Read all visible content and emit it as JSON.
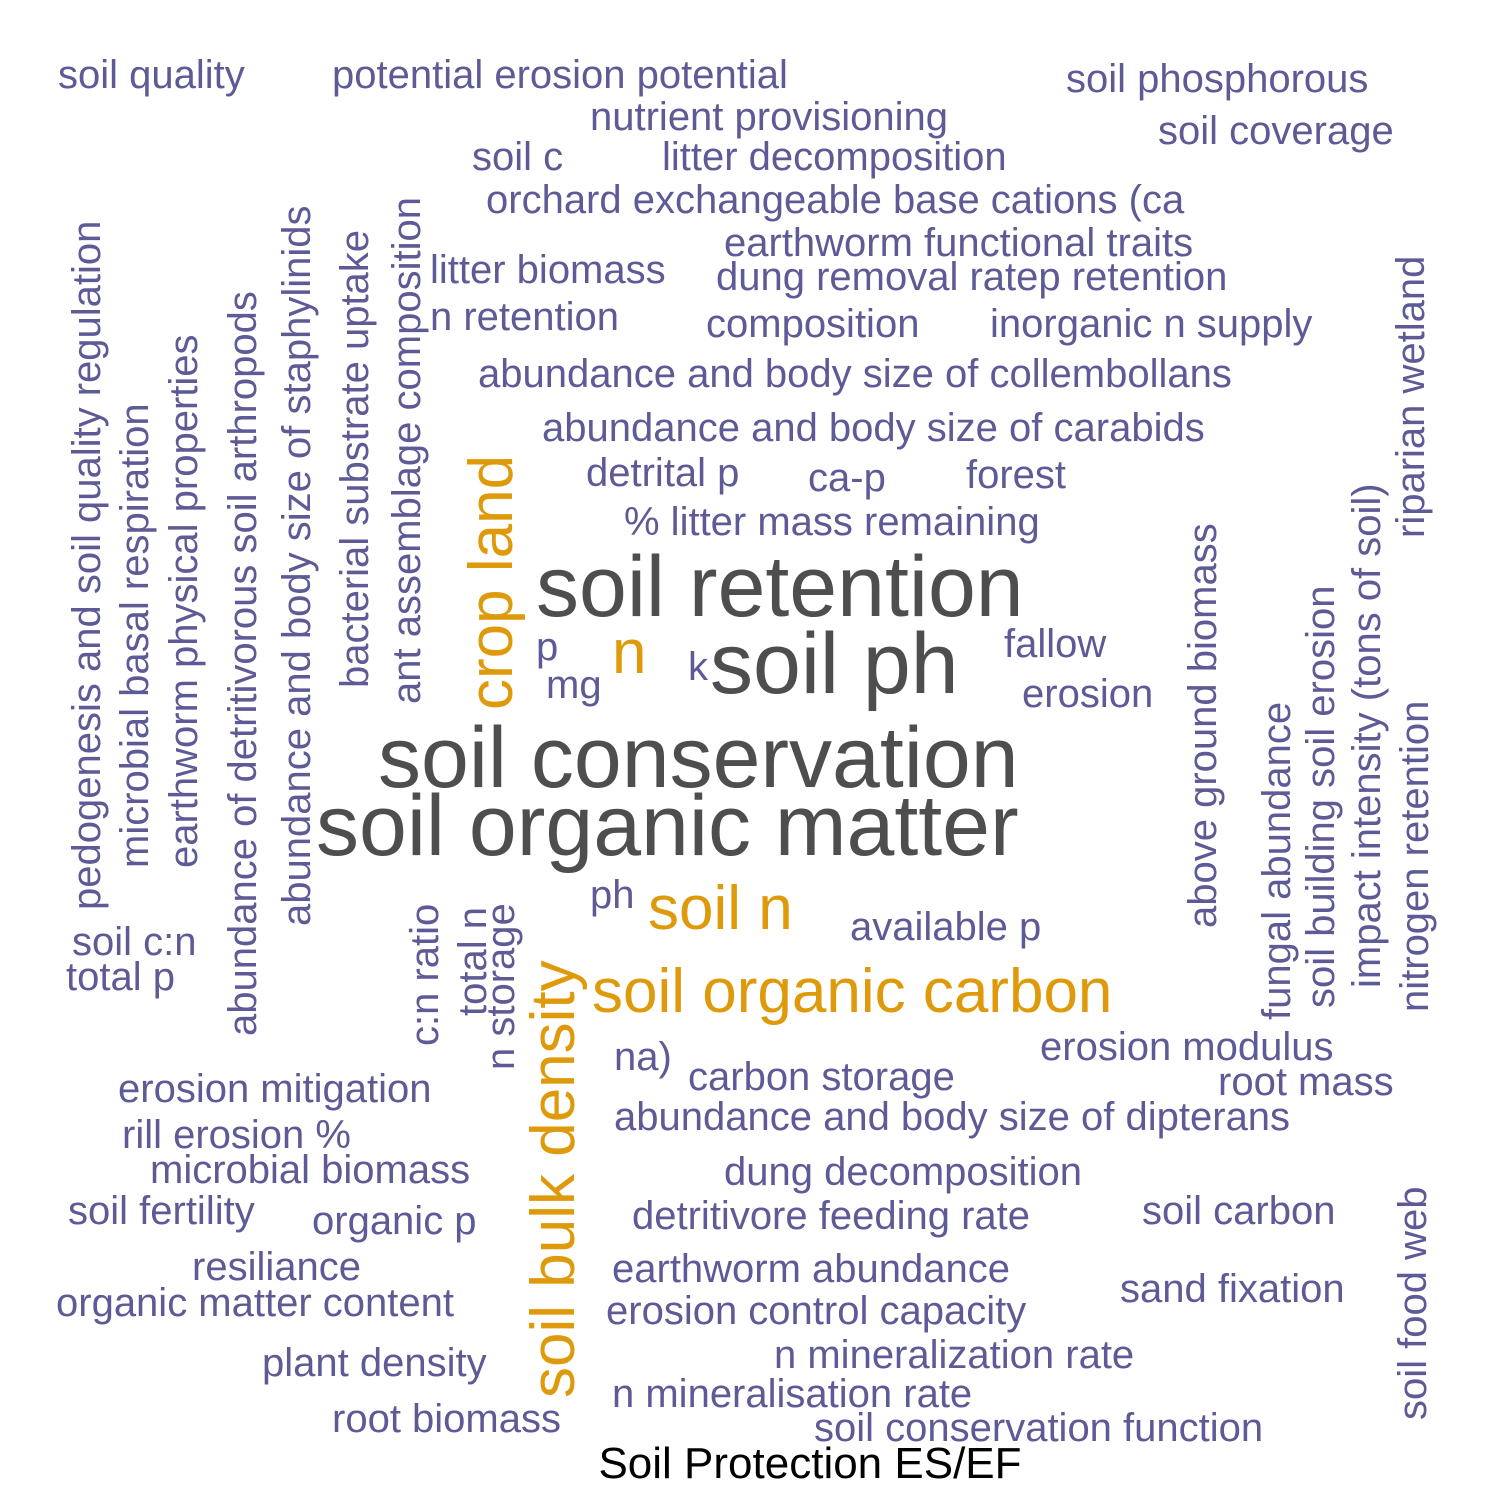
{
  "caption": "Soil Protection ES/EF",
  "colors": {
    "small": "#5e5a96",
    "medium": "#de9a0a",
    "large": "#4e4e4e"
  },
  "words": [
    {
      "text": "soil quality",
      "tier": "small"
    },
    {
      "text": "potential erosion potential",
      "tier": "small"
    },
    {
      "text": "soil phosphorous",
      "tier": "small"
    },
    {
      "text": "nutrient provisioning",
      "tier": "small"
    },
    {
      "text": "soil coverage",
      "tier": "small"
    },
    {
      "text": "soil c",
      "tier": "small"
    },
    {
      "text": "litter decomposition",
      "tier": "small"
    },
    {
      "text": "orchard exchangeable base cations (ca",
      "tier": "small"
    },
    {
      "text": "earthworm functional traits",
      "tier": "small"
    },
    {
      "text": "litter biomass",
      "tier": "small"
    },
    {
      "text": "dung removal ratep retention",
      "tier": "small"
    },
    {
      "text": "n retention",
      "tier": "small"
    },
    {
      "text": "composition",
      "tier": "small"
    },
    {
      "text": "inorganic n supply",
      "tier": "small"
    },
    {
      "text": "abundance and body size of collembollans",
      "tier": "small"
    },
    {
      "text": "abundance and body size of carabids",
      "tier": "small"
    },
    {
      "text": "detrital p",
      "tier": "small"
    },
    {
      "text": "ca-p",
      "tier": "small"
    },
    {
      "text": "forest",
      "tier": "small"
    },
    {
      "text": "% litter mass remaining",
      "tier": "small"
    },
    {
      "text": "soil retention",
      "tier": "large"
    },
    {
      "text": "p",
      "tier": "small"
    },
    {
      "text": "n",
      "tier": "medium"
    },
    {
      "text": "k",
      "tier": "small"
    },
    {
      "text": "soil ph",
      "tier": "large"
    },
    {
      "text": "fallow",
      "tier": "small"
    },
    {
      "text": "mg",
      "tier": "small"
    },
    {
      "text": "erosion",
      "tier": "small"
    },
    {
      "text": "soil conservation",
      "tier": "large"
    },
    {
      "text": "soil organic matter",
      "tier": "large"
    },
    {
      "text": "ph",
      "tier": "small"
    },
    {
      "text": "soil n",
      "tier": "medium"
    },
    {
      "text": "available p",
      "tier": "small"
    },
    {
      "text": "soil c:n",
      "tier": "small"
    },
    {
      "text": "total p",
      "tier": "small"
    },
    {
      "text": "soil organic carbon",
      "tier": "medium"
    },
    {
      "text": "erosion modulus",
      "tier": "small"
    },
    {
      "text": "na)",
      "tier": "small"
    },
    {
      "text": "carbon storage",
      "tier": "small"
    },
    {
      "text": "root mass",
      "tier": "small"
    },
    {
      "text": "erosion mitigation",
      "tier": "small"
    },
    {
      "text": "abundance and body size of dipterans",
      "tier": "small"
    },
    {
      "text": "rill erosion %",
      "tier": "small"
    },
    {
      "text": "microbial biomass",
      "tier": "small"
    },
    {
      "text": "dung decomposition",
      "tier": "small"
    },
    {
      "text": "soil fertility",
      "tier": "small"
    },
    {
      "text": "organic p",
      "tier": "small"
    },
    {
      "text": "detritivore feeding rate",
      "tier": "small"
    },
    {
      "text": "soil carbon",
      "tier": "small"
    },
    {
      "text": "resiliance",
      "tier": "small"
    },
    {
      "text": "earthworm abundance",
      "tier": "small"
    },
    {
      "text": "sand fixation",
      "tier": "small"
    },
    {
      "text": "organic matter content",
      "tier": "small"
    },
    {
      "text": "erosion control capacity",
      "tier": "small"
    },
    {
      "text": "plant density",
      "tier": "small"
    },
    {
      "text": "n mineralization rate",
      "tier": "small"
    },
    {
      "text": "n mineralisation rate",
      "tier": "small"
    },
    {
      "text": "root biomass",
      "tier": "small"
    },
    {
      "text": "soil conservation function",
      "tier": "small"
    },
    {
      "text": "pedogenesis and soil quality regulation",
      "tier": "small"
    },
    {
      "text": "microbial basal respiration",
      "tier": "small"
    },
    {
      "text": "earthworm physical properties",
      "tier": "small"
    },
    {
      "text": "abundance of detritivorous soil arthropods",
      "tier": "small"
    },
    {
      "text": "abundance and body size of staphylinids",
      "tier": "small"
    },
    {
      "text": "bacterial substrate uptake",
      "tier": "small"
    },
    {
      "text": "ant assemblage composition",
      "tier": "small"
    },
    {
      "text": "crop land",
      "tier": "medium"
    },
    {
      "text": "c:n ratio",
      "tier": "small"
    },
    {
      "text": "total n",
      "tier": "small"
    },
    {
      "text": "n storage",
      "tier": "small"
    },
    {
      "text": "soil bulk density",
      "tier": "medium"
    },
    {
      "text": "above ground biomass",
      "tier": "small"
    },
    {
      "text": "fungal abundance",
      "tier": "small"
    },
    {
      "text": "soil building soil erosion",
      "tier": "small"
    },
    {
      "text": "impact intensity (tons of soil)",
      "tier": "small"
    },
    {
      "text": "riparian wetland",
      "tier": "small"
    },
    {
      "text": "nitrogen retention",
      "tier": "small"
    },
    {
      "text": "soil food web",
      "tier": "small"
    }
  ]
}
